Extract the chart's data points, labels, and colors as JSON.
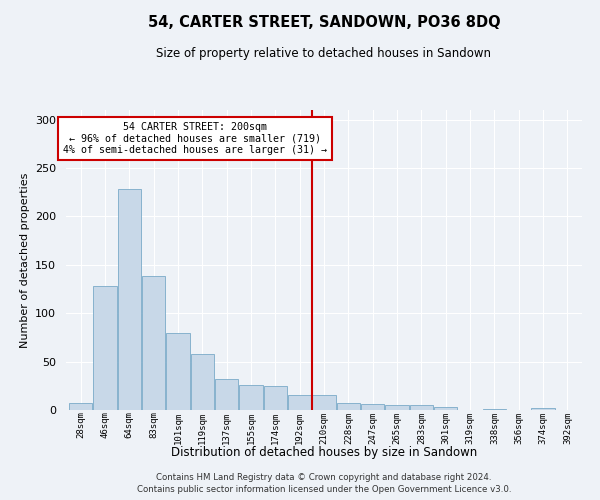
{
  "title": "54, CARTER STREET, SANDOWN, PO36 8DQ",
  "subtitle": "Size of property relative to detached houses in Sandown",
  "xlabel": "Distribution of detached houses by size in Sandown",
  "ylabel": "Number of detached properties",
  "footer_line1": "Contains HM Land Registry data © Crown copyright and database right 2024.",
  "footer_line2": "Contains public sector information licensed under the Open Government Licence v3.0.",
  "bin_labels": [
    "28sqm",
    "46sqm",
    "64sqm",
    "83sqm",
    "101sqm",
    "119sqm",
    "137sqm",
    "155sqm",
    "174sqm",
    "192sqm",
    "210sqm",
    "228sqm",
    "247sqm",
    "265sqm",
    "283sqm",
    "301sqm",
    "319sqm",
    "338sqm",
    "356sqm",
    "374sqm",
    "392sqm"
  ],
  "bar_values": [
    7,
    128,
    228,
    138,
    80,
    58,
    32,
    26,
    25,
    15,
    15,
    7,
    6,
    5,
    5,
    3,
    0,
    1,
    0,
    2,
    0
  ],
  "bar_color": "#c8d8e8",
  "bar_edgecolor": "#7aaac8",
  "annotation_line1": "54 CARTER STREET: 200sqm",
  "annotation_line2": "← 96% of detached houses are smaller (719)",
  "annotation_line3": "4% of semi-detached houses are larger (31) →",
  "vline_color": "#cc0000",
  "ylim": [
    0,
    310
  ],
  "yticks": [
    0,
    50,
    100,
    150,
    200,
    250,
    300
  ],
  "bg_color": "#eef2f7",
  "grid_color": "#ffffff",
  "vline_bin_index": 9.5
}
